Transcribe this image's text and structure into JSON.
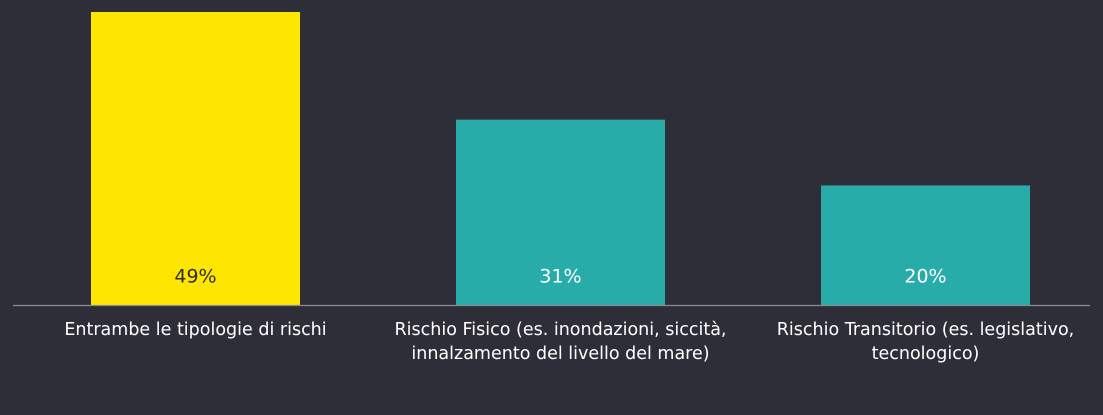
{
  "chart_data": {
    "type": "bar",
    "categories": [
      "Entrambe le tipologie di rischi",
      "Rischio Fisico (es. inondazioni, siccità, innalzamento del livello del mare)",
      "Rischio Transitorio (es. legislativo, tecnologico)"
    ],
    "values": [
      49,
      31,
      20
    ],
    "value_labels": [
      "49%",
      "31%",
      "20%"
    ],
    "colors": [
      "#ffe600",
      "#27aca9",
      "#27aca9"
    ]
  }
}
